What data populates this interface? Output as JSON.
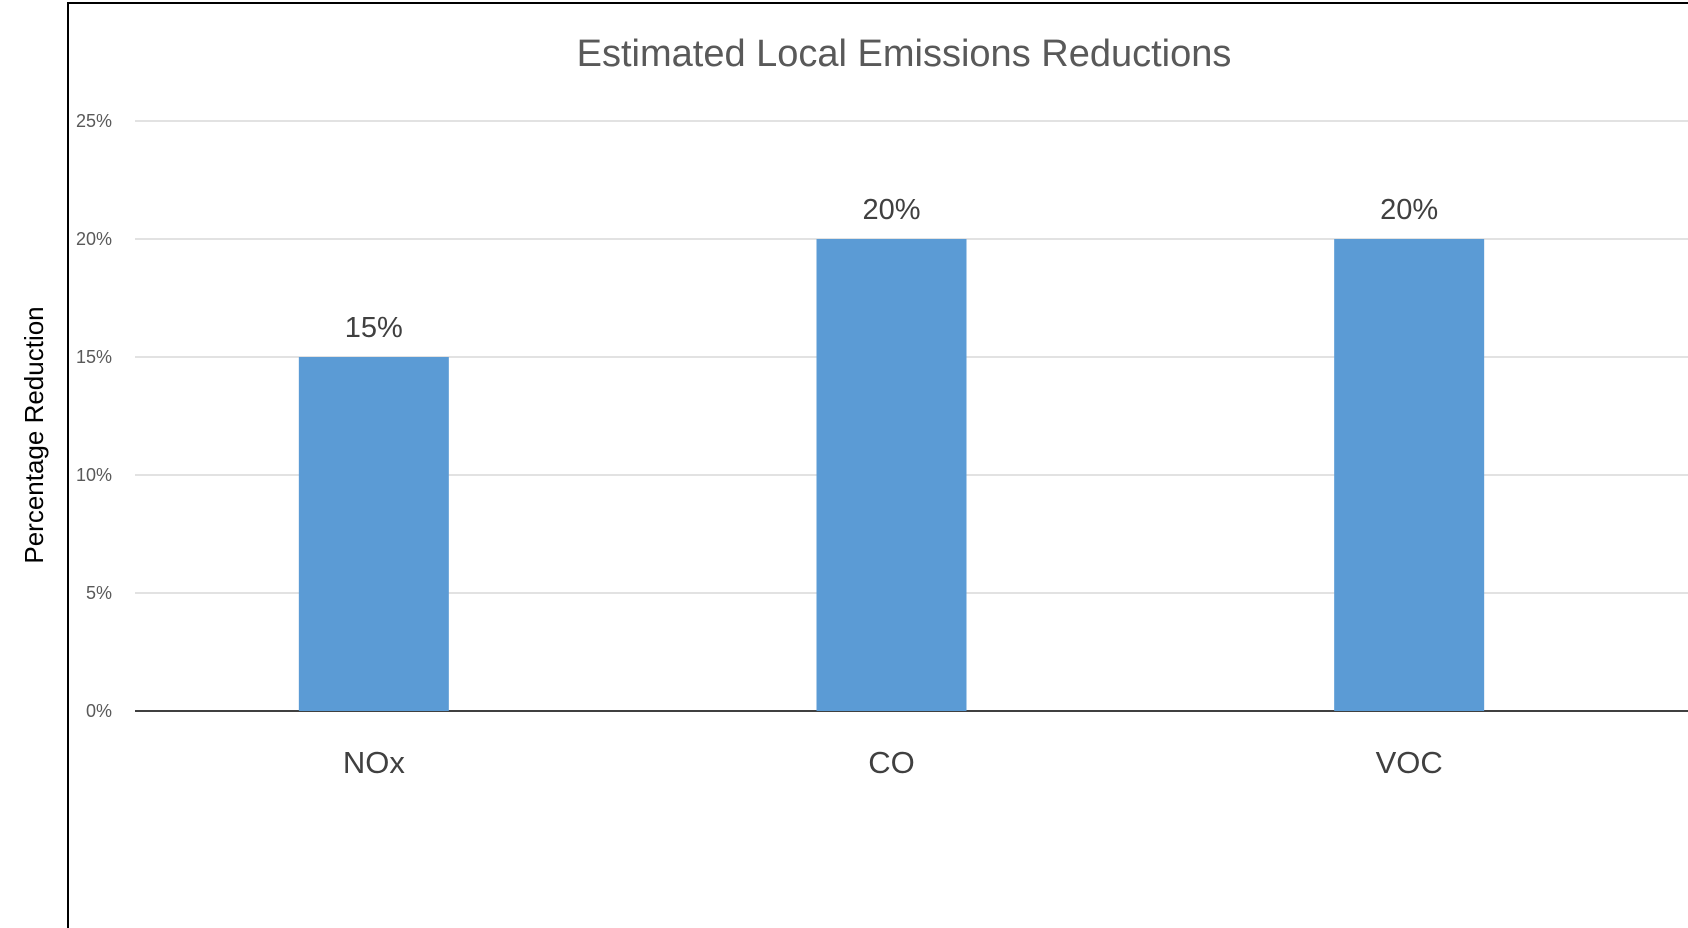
{
  "chart_data": {
    "type": "bar",
    "title": "Estimated Local Emissions Reductions",
    "xlabel": "",
    "ylabel": "Percentage Reduction",
    "categories": [
      "NOx",
      "CO",
      "VOC"
    ],
    "values": [
      15,
      20,
      20
    ],
    "value_labels": [
      "15%",
      "20%",
      "20%"
    ],
    "ylim": [
      0,
      25
    ],
    "yticks": [
      0,
      5,
      10,
      15,
      20,
      25
    ],
    "ytick_labels": [
      "0%",
      "5%",
      "10%",
      "15%",
      "20%",
      "25%"
    ],
    "grid": true,
    "legend": "none",
    "bar_color": "#5b9bd5",
    "grid_color": "#d9d9d9",
    "axis_color": "#000000"
  }
}
